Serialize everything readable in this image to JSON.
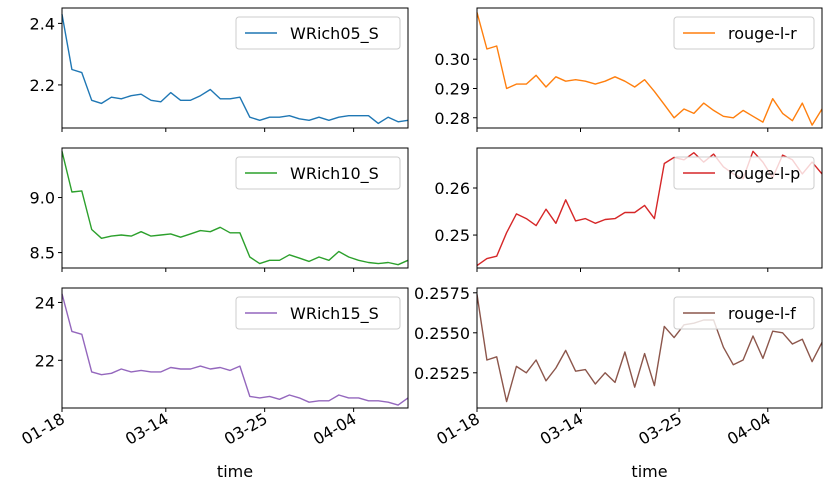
{
  "chart_data": [
    {
      "type": "line",
      "series": [
        {
          "name": "WRich05_S",
          "values": [
            2.43,
            2.25,
            2.24,
            2.15,
            2.14,
            2.16,
            2.155,
            2.165,
            2.17,
            2.15,
            2.145,
            2.175,
            2.15,
            2.15,
            2.165,
            2.185,
            2.155,
            2.155,
            2.16,
            2.095,
            2.085,
            2.095,
            2.095,
            2.1,
            2.09,
            2.085,
            2.095,
            2.085,
            2.095,
            2.1,
            2.1,
            2.1,
            2.075,
            2.095,
            2.08,
            2.085
          ]
        }
      ],
      "color": "#1f77b4",
      "yticks": [
        2.2,
        2.4
      ],
      "yticklabels": [
        "2.2",
        "2.4"
      ],
      "ylim": [
        2.06,
        2.45
      ]
    },
    {
      "type": "line",
      "series": [
        {
          "name": "rouge-l-r",
          "values": [
            0.316,
            0.3035,
            0.3045,
            0.29,
            0.2915,
            0.2915,
            0.2945,
            0.2905,
            0.294,
            0.2925,
            0.293,
            0.2925,
            0.2915,
            0.2925,
            0.294,
            0.2925,
            0.2905,
            0.293,
            0.289,
            0.2845,
            0.28,
            0.283,
            0.2815,
            0.285,
            0.2825,
            0.2805,
            0.28,
            0.2825,
            0.2805,
            0.2785,
            0.2865,
            0.2815,
            0.279,
            0.285,
            0.2775,
            0.283
          ]
        }
      ],
      "color": "#ff7f0e",
      "yticks": [
        0.28,
        0.29,
        0.3
      ],
      "yticklabels": [
        "0.28",
        "0.29",
        "0.30"
      ],
      "ylim": [
        0.2765,
        0.3175
      ]
    },
    {
      "type": "line",
      "series": [
        {
          "name": "WRich10_S",
          "values": [
            9.42,
            9.05,
            9.06,
            8.71,
            8.63,
            8.65,
            8.66,
            8.65,
            8.69,
            8.65,
            8.66,
            8.67,
            8.64,
            8.67,
            8.7,
            8.69,
            8.73,
            8.68,
            8.68,
            8.46,
            8.4,
            8.43,
            8.43,
            8.48,
            8.45,
            8.42,
            8.46,
            8.43,
            8.51,
            8.46,
            8.43,
            8.41,
            8.4,
            8.41,
            8.39,
            8.43
          ]
        }
      ],
      "color": "#2ca02c",
      "yticks": [
        8.5,
        9.0
      ],
      "yticklabels": [
        "8.5",
        "9.0"
      ],
      "ylim": [
        8.36,
        9.45
      ]
    },
    {
      "type": "line",
      "series": [
        {
          "name": "rouge-l-p",
          "values": [
            0.2435,
            0.245,
            0.2455,
            0.2505,
            0.2545,
            0.2535,
            0.252,
            0.2555,
            0.2525,
            0.2575,
            0.253,
            0.2535,
            0.2525,
            0.2533,
            0.2535,
            0.2548,
            0.2548,
            0.2563,
            0.2535,
            0.2652,
            0.2665,
            0.266,
            0.2675,
            0.2655,
            0.2672,
            0.2645,
            0.263,
            0.262,
            0.2678,
            0.2655,
            0.2622,
            0.267,
            0.266,
            0.263,
            0.2655,
            0.263
          ]
        }
      ],
      "color": "#d62728",
      "yticks": [
        0.25,
        0.26
      ],
      "yticklabels": [
        "0.25",
        "0.26"
      ],
      "ylim": [
        0.243,
        0.2685
      ]
    },
    {
      "type": "line",
      "series": [
        {
          "name": "WRich15_S",
          "values": [
            24.3,
            23.0,
            22.9,
            21.6,
            21.5,
            21.55,
            21.7,
            21.6,
            21.65,
            21.6,
            21.6,
            21.75,
            21.7,
            21.7,
            21.8,
            21.7,
            21.75,
            21.65,
            21.8,
            20.75,
            20.7,
            20.75,
            20.65,
            20.8,
            20.7,
            20.55,
            20.6,
            20.6,
            20.8,
            20.7,
            20.7,
            20.6,
            20.6,
            20.55,
            20.45,
            20.7
          ]
        }
      ],
      "color": "#9467bd",
      "yticks": [
        22,
        24
      ],
      "yticklabels": [
        "22",
        "24"
      ],
      "ylim": [
        20.35,
        24.5
      ]
    },
    {
      "type": "line",
      "series": [
        {
          "name": "rouge-l-f",
          "values": [
            0.2574,
            0.2533,
            0.2535,
            0.2507,
            0.2529,
            0.2525,
            0.2533,
            0.252,
            0.2528,
            0.2539,
            0.2526,
            0.2527,
            0.2518,
            0.2525,
            0.2519,
            0.2538,
            0.2516,
            0.2537,
            0.2517,
            0.2554,
            0.2547,
            0.2555,
            0.2556,
            0.2558,
            0.2558,
            0.2541,
            0.253,
            0.2533,
            0.2548,
            0.2534,
            0.2551,
            0.255,
            0.2543,
            0.2546,
            0.2532,
            0.2544
          ]
        }
      ],
      "color": "#8c564b",
      "yticks": [
        0.2525,
        0.255,
        0.2575
      ],
      "yticklabels": [
        "0.2525",
        "0.2550",
        "0.2575"
      ],
      "ylim": [
        0.2503,
        0.2578
      ]
    }
  ],
  "xaxis": {
    "label": "time",
    "ticks": [
      0,
      10.5,
      20.5,
      29.5
    ],
    "ticklabels": [
      "01-18",
      "03-14",
      "03-25",
      "04-04"
    ],
    "xlim": [
      0,
      35
    ]
  },
  "layout": {
    "columns": 2,
    "rows": 3
  }
}
